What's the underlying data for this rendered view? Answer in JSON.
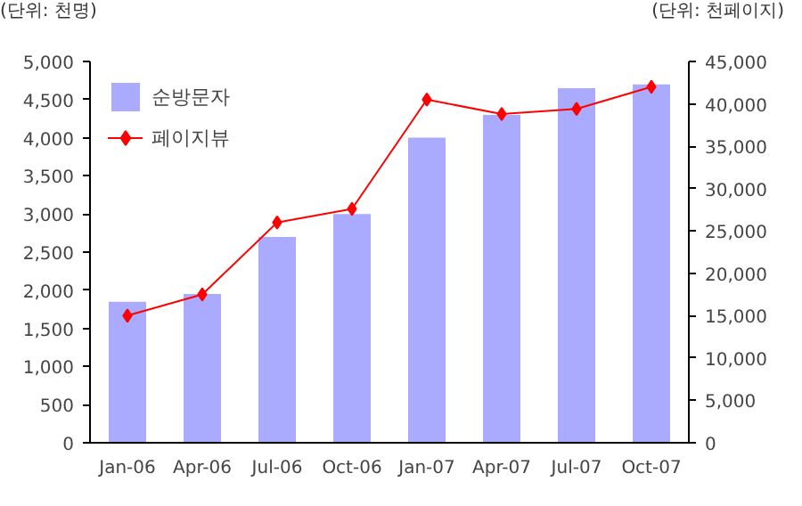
{
  "chart_data": {
    "type": "bar",
    "xlabel": null,
    "ylabel": "(단위: 천명)",
    "y2label": "(단위: 천페이지)",
    "categories": [
      "Jan-06",
      "Apr-06",
      "Jul-06",
      "Oct-06",
      "Jan-07",
      "Apr-07",
      "Jul-07",
      "Oct-07"
    ],
    "series": [
      {
        "name": "순방문자",
        "type": "bar",
        "color": "#aaaaff",
        "values": [
          1850,
          1950,
          2700,
          3000,
          4000,
          4300,
          4650,
          4700
        ]
      },
      {
        "name": "페이지뷰",
        "type": "line",
        "axis": "y2",
        "color": "#ff0000",
        "marker": "diamond",
        "values": [
          15000,
          17500,
          26000,
          27600,
          40500,
          38800,
          39400,
          42000
        ]
      }
    ],
    "ylim": [
      0,
      5000
    ],
    "yticks": [
      0,
      500,
      {
        "value": 1000,
        "label": "1,000"
      },
      {
        "value": 1500,
        "label": "1,500"
      },
      {
        "value": 2000,
        "label": "2,000"
      },
      {
        "value": 2500,
        "label": "2,500"
      },
      {
        "value": 3000,
        "label": "3,000"
      },
      {
        "value": 3500,
        "label": "3,500"
      },
      {
        "value": 4000,
        "label": "4,000"
      },
      {
        "value": 4500,
        "label": "4,500"
      },
      {
        "value": 5000,
        "label": "5,000"
      }
    ],
    "y2lim": [
      0,
      45000
    ],
    "y2ticks": [
      0,
      {
        "value": 5000,
        "label": "5,000"
      },
      {
        "value": 10000,
        "label": "10,000"
      },
      {
        "value": 15000,
        "label": "15,000"
      },
      {
        "value": 20000,
        "label": "20,000"
      },
      {
        "value": 25000,
        "label": "25,000"
      },
      {
        "value": 30000,
        "label": "30,000"
      },
      {
        "value": 35000,
        "label": "35,000"
      },
      {
        "value": 40000,
        "label": "40,000"
      },
      {
        "value": 45000,
        "label": "45,000"
      }
    ],
    "grid": false,
    "legend": "top left"
  }
}
